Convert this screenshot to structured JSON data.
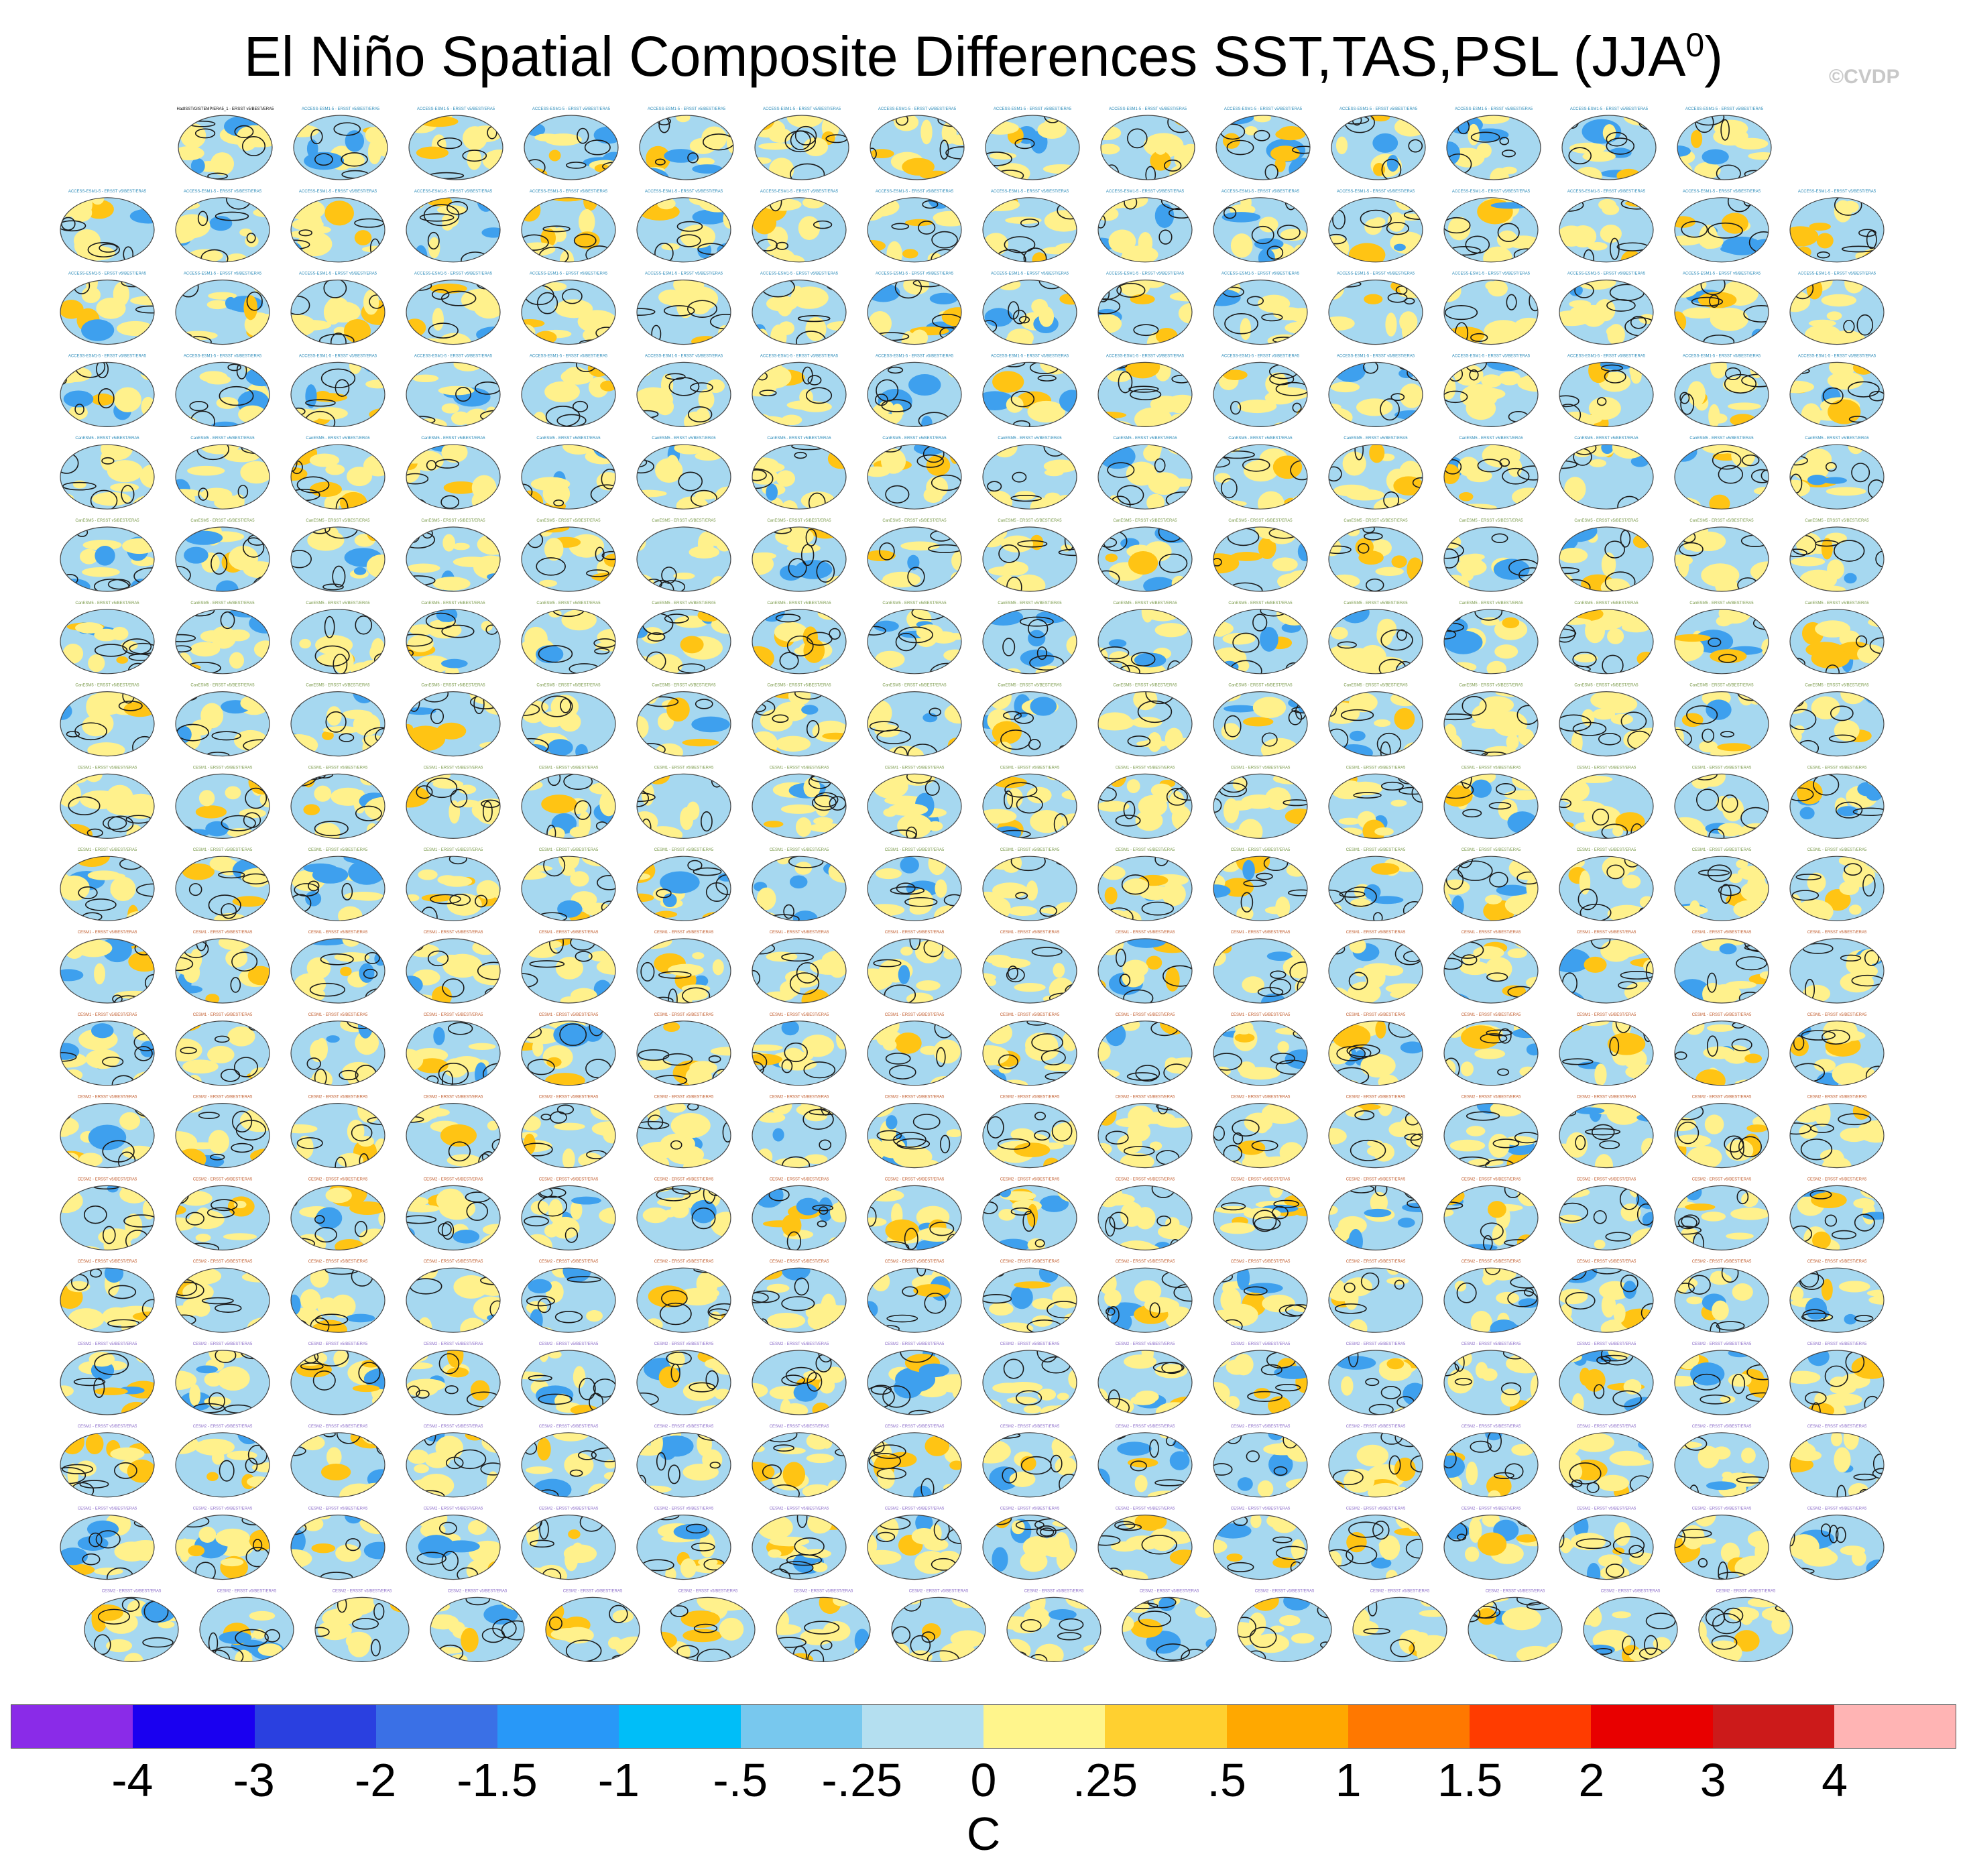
{
  "title": {
    "main": "El Niño Spatial Composite Differences SST,TAS,PSL (JJA",
    "superscript": "0",
    "close": ")"
  },
  "credit": "©CVDP",
  "panels": {
    "rows": [
      14,
      16,
      16,
      16,
      16,
      16,
      16,
      16,
      16,
      16,
      16,
      16,
      16,
      16,
      16,
      16,
      16,
      16,
      15
    ],
    "first_label": "HadISST/GISTEMP/ERA5_1 - ERSST v5/BEST/ERA5",
    "label_tags": [
      "ACCESS-ESM1-5",
      "CanESM5",
      "CESM1",
      "CESM2",
      "CESM2"
    ],
    "colors": {
      "ocean": "#a6d8f0",
      "land": "#fff18c",
      "warm": "#ffc414",
      "cool": "#3ea0ee",
      "contour": "#1a1a1a"
    }
  },
  "chart_data": {
    "type": "heatmap",
    "title": "El Niño Spatial Composite Differences SST,TAS,PSL (JJA0)",
    "colorbar": {
      "unit": "C",
      "tick_labels": [
        "-4",
        "-3",
        "-2",
        "-1.5",
        "-1",
        "-.5",
        "-.25",
        "0",
        ".25",
        ".5",
        "1",
        "1.5",
        "2",
        "3",
        "4"
      ],
      "levels": [
        -4,
        -3,
        -2,
        -1.5,
        -1,
        -0.5,
        -0.25,
        0,
        0.25,
        0.5,
        1,
        1.5,
        2,
        3,
        4
      ],
      "colors": [
        "#8a2be8",
        "#1a00f0",
        "#2a40e0",
        "#3a70e6",
        "#2898f8",
        "#00bef8",
        "#78c8ee",
        "#b4dff0",
        "#fff58c",
        "#ffd030",
        "#ffa800",
        "#ff7800",
        "#ff3c00",
        "#e80000",
        "#cc1a1a",
        "#ffb4b4"
      ]
    }
  }
}
